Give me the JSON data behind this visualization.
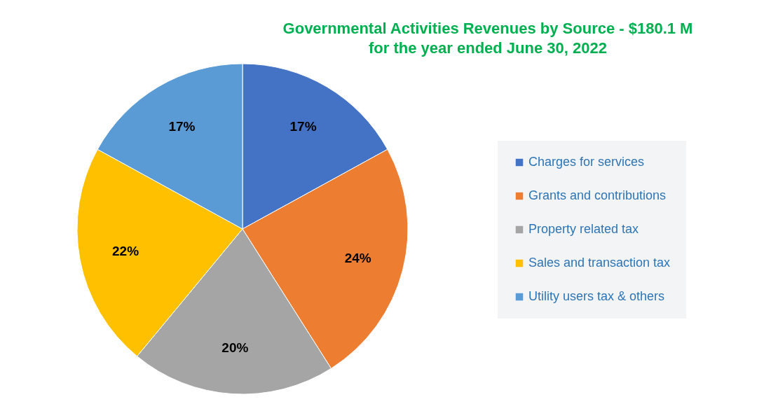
{
  "chart_data": {
    "type": "pie",
    "title": "Governmental Activities Revenues by Source - $180.1 M",
    "subtitle": "for the year ended June 30, 2022",
    "categories": [
      "Charges for services",
      "Grants and contributions",
      "Property related tax",
      "Sales and transaction tax",
      "Utility users tax & others"
    ],
    "values": [
      17,
      24,
      20,
      22,
      17
    ],
    "colors": [
      "#4472c4",
      "#ed7d31",
      "#a5a5a5",
      "#ffc000",
      "#5b9bd5"
    ],
    "value_labels": [
      "17%",
      "24%",
      "20%",
      "22%",
      "17%"
    ],
    "legend": "right"
  }
}
